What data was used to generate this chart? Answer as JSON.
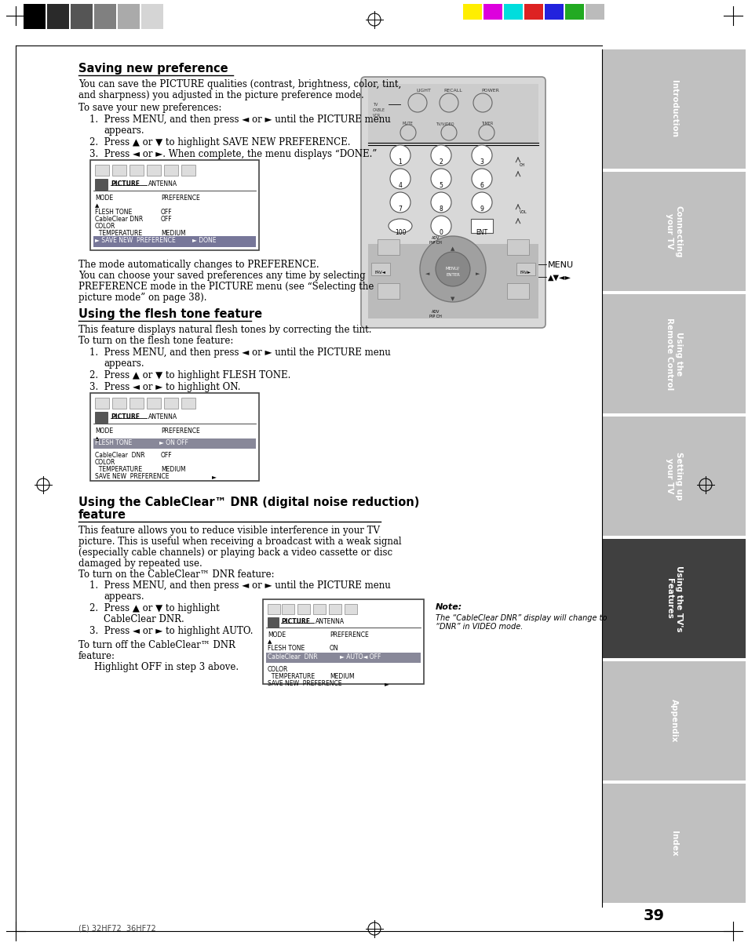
{
  "page_bg": "#ffffff",
  "page_number": "39",
  "sidebar_tabs": [
    {
      "label": "Introduction",
      "active": false,
      "color": "#c0c0c0"
    },
    {
      "label": "Connecting\nyour TV",
      "active": false,
      "color": "#c0c0c0"
    },
    {
      "label": "Using the\nRemote Control",
      "active": false,
      "color": "#c0c0c0"
    },
    {
      "label": "Setting up\nyour TV",
      "active": false,
      "color": "#c0c0c0"
    },
    {
      "label": "Using the TV's\nFeatures",
      "active": true,
      "color": "#404040"
    },
    {
      "label": "Appendix",
      "active": false,
      "color": "#c0c0c0"
    },
    {
      "label": "Index",
      "active": false,
      "color": "#c0c0c0"
    }
  ],
  "top_colors_left": [
    "#000000",
    "#2a2a2a",
    "#555555",
    "#808080",
    "#aaaaaa",
    "#d5d5d5"
  ],
  "top_colors_right": [
    "#ffee00",
    "#dd00dd",
    "#00dddd",
    "#dd2222",
    "#2222dd",
    "#22aa22",
    "#bbbbbb"
  ],
  "footer_text": "(E) 32HF72  36HF72"
}
